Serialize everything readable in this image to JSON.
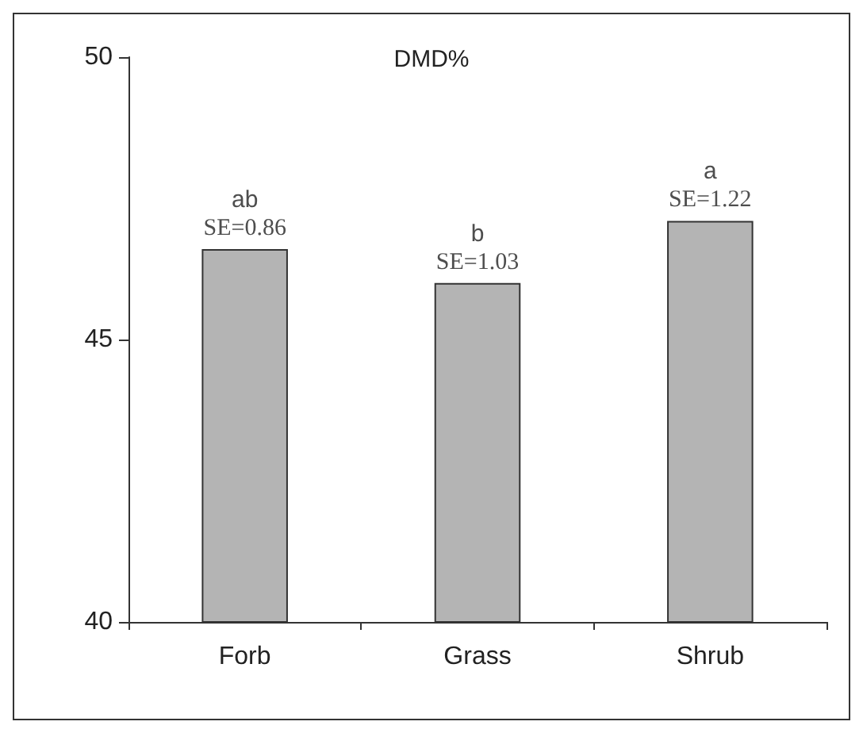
{
  "chart_data": {
    "type": "bar",
    "title": "DMD%",
    "categories": [
      "Forb",
      "Grass",
      "Shrub"
    ],
    "values": [
      46.6,
      46.0,
      47.1
    ],
    "color": "#b4b4b4",
    "ylim": [
      40,
      50
    ],
    "yticks": [
      40,
      45,
      50
    ],
    "grid": false,
    "annotations": [
      {
        "text": "ab\nSE=0.86",
        "x": "Forb",
        "y": 46.6
      },
      {
        "text": "b\nSE=1.03",
        "x": "Grass",
        "y": 46.0
      },
      {
        "text": "a\nSE=1.22",
        "x": "Shrub",
        "y": 47.1
      }
    ]
  }
}
